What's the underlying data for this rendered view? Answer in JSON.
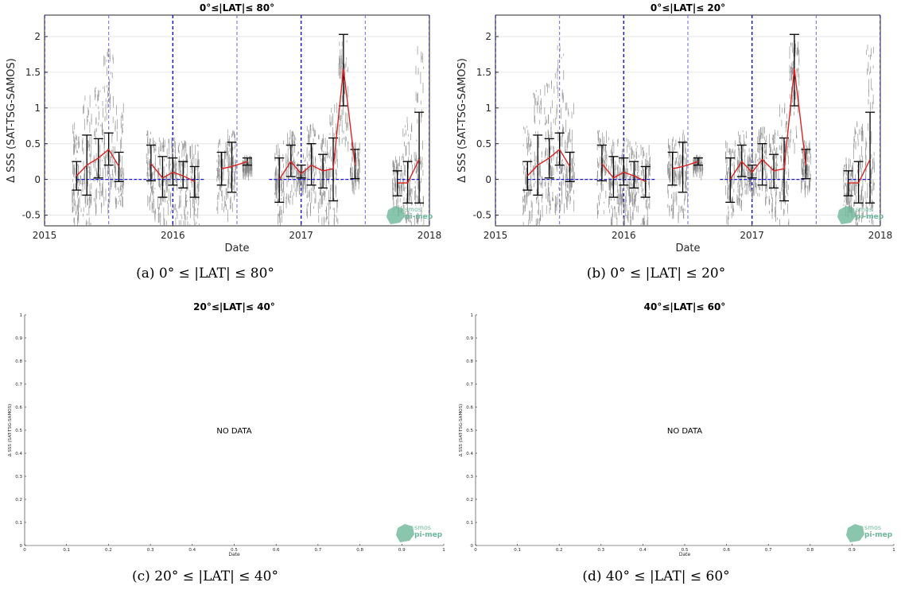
{
  "figure": {
    "panels": [
      {
        "caption": "(a) 0° ≤ |LAT| ≤ 80°",
        "title": "0°≤|LAT|≤ 80°",
        "xlabel": "Date",
        "ylabel": "Δ SSS (SAT-TSG-SAMOS)",
        "has_data": true
      },
      {
        "caption": "(b) 0° ≤ |LAT| ≤ 20°",
        "title": "0°≤|LAT|≤ 20°",
        "xlabel": "Date",
        "ylabel": "Δ SSS (SAT-TSG-SAMOS)",
        "has_data": true
      },
      {
        "caption": "(c) 20° ≤ |LAT| ≤ 40°",
        "title": "20°≤|LAT|≤ 40°",
        "xlabel": "Date",
        "ylabel": "Δ SSS (SAT-TSG-SAMOS)",
        "has_data": false,
        "no_data_text": "NO DATA"
      },
      {
        "caption": "(d) 40° ≤ |LAT| ≤ 60°",
        "title": "40°≤|LAT|≤ 60°",
        "xlabel": "Date",
        "ylabel": "Δ SSS (SAT-TSG-SAMOS)",
        "has_data": false,
        "no_data_text": "NO DATA"
      }
    ],
    "logo": {
      "line1": "smos",
      "line2": "pi-mep",
      "color": "#6db89a"
    },
    "colors": {
      "scatter": "#808080",
      "mean_line": "#e02020",
      "error_bar": "#000000",
      "zero_line": "#1a1acc",
      "year_line": "#1a1acc",
      "half_year_line": "#6a6ae8",
      "grid": "#e6e6e6"
    }
  },
  "chart_data": [
    {
      "type": "line",
      "title": "0°≤|LAT|≤ 80°",
      "xlabel": "Date",
      "ylabel": "Δ SSS (SAT-TSG-SAMOS)",
      "xlim": [
        2015,
        2018
      ],
      "ylim": [
        -0.65,
        2.3
      ],
      "xticks": [
        "2015",
        "2016",
        "2017",
        "2018"
      ],
      "yticks": [
        "-0.5",
        "0",
        "0.5",
        "1",
        "1.5",
        "2"
      ],
      "grid": true,
      "x": [
        2015.25,
        2015.33,
        2015.42,
        2015.5,
        2015.58,
        2015.83,
        2015.92,
        2016.0,
        2016.08,
        2016.17,
        2016.38,
        2016.46,
        2016.58,
        2016.83,
        2016.92,
        2017.0,
        2017.08,
        2017.17,
        2017.25,
        2017.33,
        2017.42,
        2017.75,
        2017.83,
        2017.92
      ],
      "mean": [
        0.05,
        0.2,
        0.3,
        0.42,
        0.18,
        0.22,
        0.02,
        0.1,
        0.05,
        -0.03,
        0.15,
        0.18,
        0.25,
        0.0,
        0.25,
        0.08,
        0.2,
        0.12,
        0.15,
        1.55,
        0.2,
        -0.05,
        -0.05,
        0.28
      ],
      "upper": [
        0.25,
        0.62,
        0.57,
        0.65,
        0.38,
        0.48,
        0.32,
        0.3,
        0.25,
        0.18,
        0.38,
        0.52,
        0.3,
        0.3,
        0.48,
        0.2,
        0.5,
        0.35,
        0.58,
        2.03,
        0.42,
        0.12,
        0.25,
        0.94
      ],
      "lower": [
        -0.15,
        -0.22,
        0.02,
        0.2,
        -0.03,
        -0.02,
        -0.25,
        -0.08,
        -0.12,
        -0.25,
        -0.08,
        -0.18,
        0.2,
        -0.32,
        0.04,
        0.02,
        -0.08,
        -0.12,
        -0.3,
        1.03,
        0.01,
        -0.23,
        -0.33,
        -0.33
      ],
      "scatter_upper": [
        0.8,
        1.3,
        1.4,
        1.9,
        1.1,
        0.7,
        0.6,
        0.6,
        0.55,
        0.5,
        0.6,
        0.7,
        0.35,
        0.55,
        0.7,
        0.45,
        0.8,
        0.7,
        1.1,
        1.95,
        0.55,
        0.35,
        0.9,
        1.9
      ],
      "scatter_lower": [
        -0.6,
        -0.65,
        -0.4,
        -0.35,
        -0.3,
        -0.45,
        -0.6,
        -0.55,
        -0.6,
        -0.65,
        -0.4,
        -0.5,
        0.15,
        -0.55,
        -0.3,
        -0.15,
        -0.45,
        -0.55,
        -0.6,
        0.5,
        -0.1,
        -0.45,
        -0.65,
        -0.65
      ],
      "year_lines": [
        2016,
        2017
      ],
      "half_year_lines": [
        2015.5,
        2016.5,
        2017.5
      ],
      "zero_segments": [
        [
          2015.25,
          2016.25
        ],
        [
          2016.75,
          2017.42
        ],
        [
          2017.75,
          2017.92
        ]
      ]
    },
    {
      "type": "line",
      "title": "0°≤|LAT|≤ 20°",
      "xlabel": "Date",
      "ylabel": "Δ SSS (SAT-TSG-SAMOS)",
      "xlim": [
        2015,
        2018
      ],
      "ylim": [
        -0.65,
        2.3
      ],
      "xticks": [
        "2015",
        "2016",
        "2017",
        "2018"
      ],
      "yticks": [
        "-0.5",
        "0",
        "0.5",
        "1",
        "1.5",
        "2"
      ],
      "grid": true,
      "x": [
        2015.25,
        2015.33,
        2015.42,
        2015.5,
        2015.58,
        2015.83,
        2015.92,
        2016.0,
        2016.08,
        2016.17,
        2016.38,
        2016.46,
        2016.58,
        2016.83,
        2016.92,
        2017.0,
        2017.08,
        2017.17,
        2017.25,
        2017.33,
        2017.42,
        2017.75,
        2017.83,
        2017.92
      ],
      "mean": [
        0.05,
        0.2,
        0.3,
        0.42,
        0.18,
        0.22,
        0.02,
        0.1,
        0.05,
        -0.03,
        0.15,
        0.18,
        0.25,
        0.0,
        0.25,
        0.1,
        0.28,
        0.12,
        0.15,
        1.55,
        0.2,
        -0.05,
        -0.05,
        0.28
      ],
      "upper": [
        0.25,
        0.62,
        0.57,
        0.65,
        0.38,
        0.48,
        0.32,
        0.3,
        0.25,
        0.18,
        0.38,
        0.52,
        0.3,
        0.3,
        0.48,
        0.2,
        0.5,
        0.35,
        0.58,
        2.03,
        0.42,
        0.12,
        0.25,
        0.94
      ],
      "lower": [
        -0.15,
        -0.22,
        0.02,
        0.2,
        -0.03,
        -0.02,
        -0.25,
        -0.08,
        -0.12,
        -0.25,
        -0.08,
        -0.18,
        0.2,
        -0.32,
        0.04,
        0.02,
        -0.08,
        -0.12,
        -0.3,
        1.03,
        0.01,
        -0.23,
        -0.33,
        -0.33
      ],
      "scatter_upper": [
        0.8,
        1.3,
        1.4,
        1.9,
        1.1,
        0.7,
        0.6,
        0.6,
        0.55,
        0.5,
        0.6,
        0.7,
        0.35,
        0.55,
        0.7,
        0.45,
        0.8,
        0.7,
        1.1,
        1.95,
        0.55,
        0.35,
        0.9,
        1.9
      ],
      "scatter_lower": [
        -0.6,
        -0.65,
        -0.4,
        -0.35,
        -0.3,
        -0.45,
        -0.6,
        -0.55,
        -0.6,
        -0.65,
        -0.4,
        -0.5,
        0.15,
        -0.55,
        -0.3,
        -0.15,
        -0.45,
        -0.55,
        -0.6,
        0.5,
        -0.1,
        -0.45,
        -0.65,
        -0.65
      ],
      "year_lines": [
        2016,
        2017
      ],
      "half_year_lines": [
        2015.5,
        2016.5,
        2017.5
      ],
      "zero_segments": [
        [
          2015.25,
          2016.25
        ],
        [
          2016.75,
          2017.42
        ],
        [
          2017.75,
          2017.92
        ]
      ]
    },
    {
      "type": "line",
      "title": "20°≤|LAT|≤ 40°",
      "xlabel": "Date",
      "ylabel": "Δ SSS (SAT-TSG-SAMOS)",
      "xlim": [
        0,
        1
      ],
      "ylim": [
        0,
        1
      ],
      "xticks": [
        "0",
        "0.1",
        "0.2",
        "0.3",
        "0.4",
        "0.5",
        "0.6",
        "0.7",
        "0.8",
        "0.9",
        "1"
      ],
      "yticks": [
        "0",
        "0.1",
        "0.2",
        "0.3",
        "0.4",
        "0.5",
        "0.6",
        "0.7",
        "0.8",
        "0.9",
        "1"
      ],
      "grid": false,
      "annotation": "NO DATA"
    },
    {
      "type": "line",
      "title": "40°≤|LAT|≤ 60°",
      "xlabel": "Date",
      "ylabel": "Δ SSS (SAT-TSG-SAMOS)",
      "xlim": [
        0,
        1
      ],
      "ylim": [
        0,
        1
      ],
      "xticks": [
        "0",
        "0.1",
        "0.2",
        "0.3",
        "0.4",
        "0.5",
        "0.6",
        "0.7",
        "0.8",
        "0.9",
        "1"
      ],
      "yticks": [
        "0",
        "0.1",
        "0.2",
        "0.3",
        "0.4",
        "0.5",
        "0.6",
        "0.7",
        "0.8",
        "0.9",
        "1"
      ],
      "grid": false,
      "annotation": "NO DATA"
    }
  ]
}
